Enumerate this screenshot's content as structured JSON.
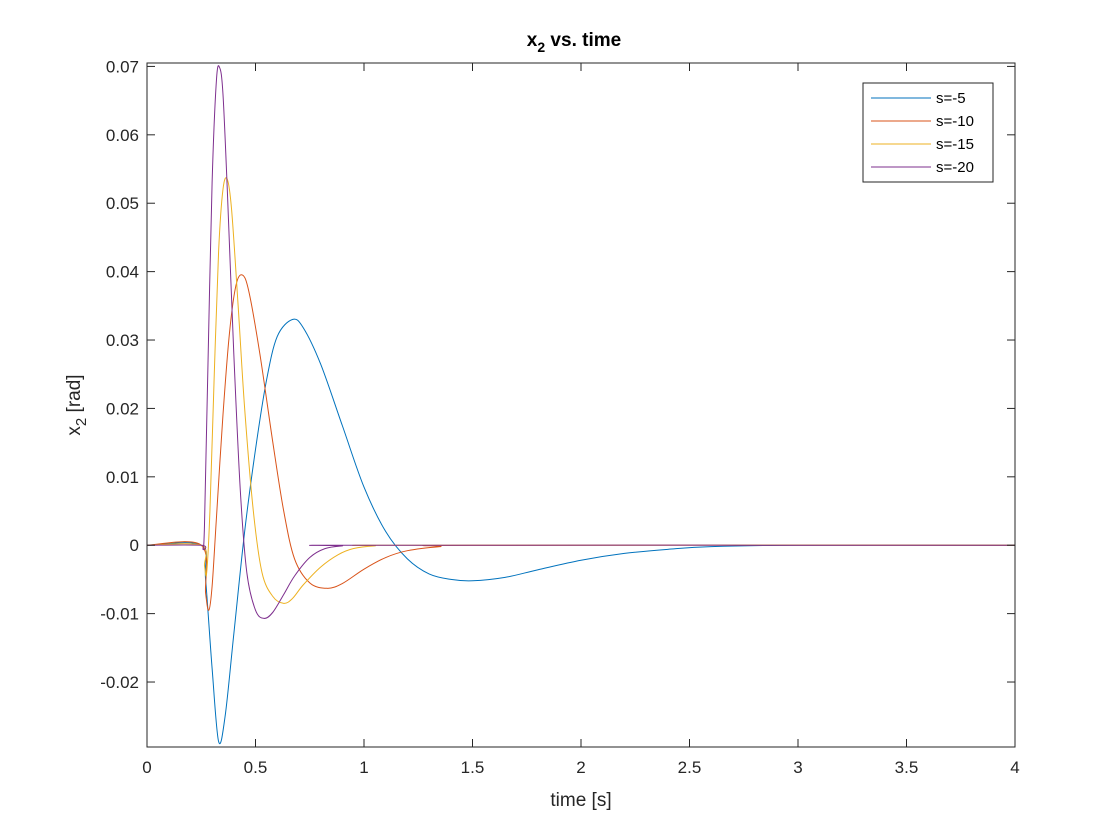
{
  "chart_data": {
    "type": "line",
    "title": "x",
    "title_sub": "2",
    "title_rest": " vs. time",
    "xlabel": "time [s]",
    "ylabel": "x",
    "ylabel_sub": "2",
    "ylabel_rest": " [rad]",
    "xlim": [
      0,
      4
    ],
    "ylim": [
      -0.0295,
      0.0705
    ],
    "xticks": [
      "0",
      "0.5",
      "1",
      "1.5",
      "2",
      "2.5",
      "3",
      "3.5",
      "4"
    ],
    "xtick_values": [
      0,
      0.5,
      1,
      1.5,
      2,
      2.5,
      3,
      3.5,
      4
    ],
    "yticks": [
      "-0.02",
      "-0.01",
      "0",
      "0.01",
      "0.02",
      "0.03",
      "0.04",
      "0.05",
      "0.06",
      "0.07"
    ],
    "ytick_values": [
      -0.02,
      -0.01,
      0,
      0.01,
      0.02,
      0.03,
      0.04,
      0.05,
      0.06,
      0.07
    ],
    "grid": false,
    "legend_position": "top-right",
    "series": [
      {
        "name": "s=-5",
        "color": "#0072BD",
        "points": [
          [
            0,
            0
          ],
          [
            0.25,
            0
          ],
          [
            0.27,
            -0.005
          ],
          [
            0.3,
            -0.018
          ],
          [
            0.33,
            -0.0287
          ],
          [
            0.36,
            -0.025
          ],
          [
            0.4,
            -0.013
          ],
          [
            0.45,
            0.002
          ],
          [
            0.5,
            0.014
          ],
          [
            0.55,
            0.024
          ],
          [
            0.6,
            0.0305
          ],
          [
            0.67,
            0.033
          ],
          [
            0.72,
            0.0318
          ],
          [
            0.8,
            0.0265
          ],
          [
            0.9,
            0.0175
          ],
          [
            1.0,
            0.0085
          ],
          [
            1.1,
            0.002
          ],
          [
            1.2,
            -0.002
          ],
          [
            1.3,
            -0.0042
          ],
          [
            1.4,
            -0.005
          ],
          [
            1.5,
            -0.0052
          ],
          [
            1.65,
            -0.0047
          ],
          [
            1.8,
            -0.0036
          ],
          [
            2.0,
            -0.0022
          ],
          [
            2.2,
            -0.0012
          ],
          [
            2.4,
            -0.0006
          ],
          [
            2.6,
            -0.0002
          ],
          [
            3.0,
            0
          ],
          [
            4,
            0
          ]
        ]
      },
      {
        "name": "s=-10",
        "color": "#D95319",
        "points": [
          [
            0,
            0
          ],
          [
            0.25,
            0
          ],
          [
            0.27,
            -0.007
          ],
          [
            0.285,
            -0.0095
          ],
          [
            0.3,
            -0.006
          ],
          [
            0.32,
            0.004
          ],
          [
            0.35,
            0.019
          ],
          [
            0.38,
            0.031
          ],
          [
            0.41,
            0.038
          ],
          [
            0.44,
            0.0395
          ],
          [
            0.47,
            0.037
          ],
          [
            0.52,
            0.028
          ],
          [
            0.58,
            0.015
          ],
          [
            0.63,
            0.005
          ],
          [
            0.68,
            -0.002
          ],
          [
            0.75,
            -0.0055
          ],
          [
            0.83,
            -0.0063
          ],
          [
            0.9,
            -0.0056
          ],
          [
            1.0,
            -0.0035
          ],
          [
            1.1,
            -0.0018
          ],
          [
            1.2,
            -0.0008
          ],
          [
            1.35,
            -0.0002
          ],
          [
            1.5,
            0
          ],
          [
            4,
            0
          ]
        ]
      },
      {
        "name": "s=-15",
        "color": "#EDB120",
        "points": [
          [
            0,
            0
          ],
          [
            0.25,
            0
          ],
          [
            0.265,
            -0.003
          ],
          [
            0.275,
            -0.004
          ],
          [
            0.29,
            0.005
          ],
          [
            0.31,
            0.025
          ],
          [
            0.33,
            0.043
          ],
          [
            0.35,
            0.052
          ],
          [
            0.37,
            0.0535
          ],
          [
            0.39,
            0.049
          ],
          [
            0.42,
            0.035
          ],
          [
            0.45,
            0.02
          ],
          [
            0.49,
            0.005
          ],
          [
            0.53,
            -0.004
          ],
          [
            0.58,
            -0.0075
          ],
          [
            0.63,
            -0.0085
          ],
          [
            0.67,
            -0.0078
          ],
          [
            0.72,
            -0.0058
          ],
          [
            0.8,
            -0.0032
          ],
          [
            0.88,
            -0.0014
          ],
          [
            0.95,
            -0.0005
          ],
          [
            1.05,
            -0.0001
          ],
          [
            1.2,
            0
          ],
          [
            4,
            0
          ]
        ]
      },
      {
        "name": "s=-20",
        "color": "#7E2F8E",
        "points": [
          [
            0,
            0
          ],
          [
            0.25,
            0
          ],
          [
            0.258,
            -0.0005
          ],
          [
            0.265,
            0.003
          ],
          [
            0.28,
            0.025
          ],
          [
            0.3,
            0.053
          ],
          [
            0.32,
            0.068
          ],
          [
            0.335,
            0.0698
          ],
          [
            0.35,
            0.066
          ],
          [
            0.37,
            0.052
          ],
          [
            0.4,
            0.028
          ],
          [
            0.43,
            0.008
          ],
          [
            0.46,
            -0.004
          ],
          [
            0.5,
            -0.0095
          ],
          [
            0.54,
            -0.0107
          ],
          [
            0.58,
            -0.0098
          ],
          [
            0.63,
            -0.0072
          ],
          [
            0.68,
            -0.0045
          ],
          [
            0.75,
            -0.0018
          ],
          [
            0.82,
            -0.0005
          ],
          [
            0.9,
            -0.0001
          ],
          [
            1.0,
            0
          ],
          [
            4,
            0
          ]
        ]
      }
    ]
  }
}
